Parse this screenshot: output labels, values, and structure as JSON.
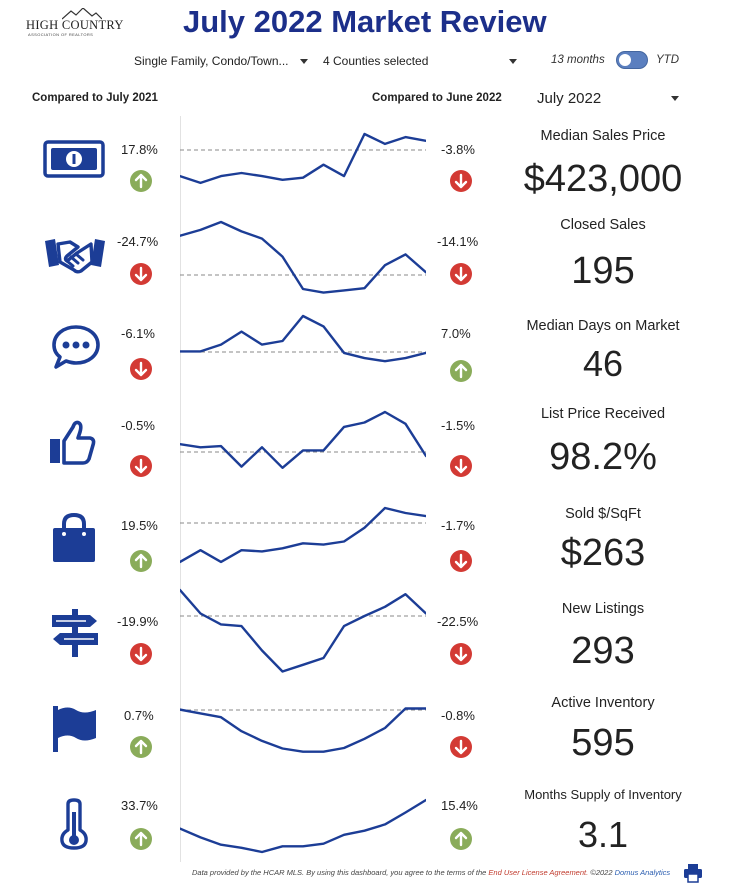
{
  "header": {
    "logo_text": "HIGH COUNTRY",
    "logo_sub": "ASSOCIATION OF REALTORS",
    "title": "July 2022 Market Review"
  },
  "filters": {
    "property_type": "Single Family, Condo/Town...",
    "counties": "4 Counties selected",
    "toggle_left": "13 months",
    "toggle_right": "YTD"
  },
  "columns": {
    "left_compare": "Compared to July 2021",
    "right_compare": "Compared to June 2022",
    "month": "July 2022"
  },
  "colors": {
    "accent": "#1c2f8a",
    "line": "#1c3d96",
    "up": "#8aac5a",
    "down": "#d33a34"
  },
  "metrics": [
    {
      "label": "Median Sales Price",
      "value": "$423,000",
      "icon": "money-icon",
      "yoy": "17.8%",
      "yoy_dir": "up",
      "mom": "-3.8%",
      "mom_dir": "down"
    },
    {
      "label": "Closed Sales",
      "value": "195",
      "icon": "handshake-icon",
      "yoy": "-24.7%",
      "yoy_dir": "down",
      "mom": "-14.1%",
      "mom_dir": "down"
    },
    {
      "label": "Median Days on Market",
      "value": "46",
      "icon": "chat-bubble-icon",
      "yoy": "-6.1%",
      "yoy_dir": "down",
      "mom": "7.0%",
      "mom_dir": "up"
    },
    {
      "label": "List Price Received",
      "value": "98.2%",
      "icon": "thumbs-up-icon",
      "yoy": "-0.5%",
      "yoy_dir": "down",
      "mom": "-1.5%",
      "mom_dir": "down"
    },
    {
      "label": "Sold $/SqFt",
      "value": "$263",
      "icon": "shopping-bag-icon",
      "yoy": "19.5%",
      "yoy_dir": "up",
      "mom": "-1.7%",
      "mom_dir": "down"
    },
    {
      "label": "New Listings",
      "value": "293",
      "icon": "signpost-icon",
      "yoy": "-19.9%",
      "yoy_dir": "down",
      "mom": "-22.5%",
      "mom_dir": "down"
    },
    {
      "label": "Active Inventory",
      "value": "595",
      "icon": "flag-icon",
      "yoy": "0.7%",
      "yoy_dir": "up",
      "mom": "-0.8%",
      "mom_dir": "down"
    },
    {
      "label": "Months Supply of Inventory",
      "value": "3.1",
      "icon": "thermometer-icon",
      "yoy": "33.7%",
      "yoy_dir": "up",
      "mom": "15.4%",
      "mom_dir": "up"
    }
  ],
  "sparklines": [
    [
      0.81,
      0.94,
      0.81,
      0.75,
      0.81,
      0.88,
      0.84,
      0.59,
      0.81,
      0.0,
      0.19,
      0.06,
      0.13
    ],
    [
      0.19,
      0.11,
      0.0,
      0.13,
      0.23,
      0.48,
      0.93,
      0.98,
      0.95,
      0.92,
      0.6,
      0.45,
      0.7
    ],
    [
      0.68,
      0.68,
      0.55,
      0.3,
      0.55,
      0.48,
      0.0,
      0.2,
      0.71,
      0.81,
      0.87,
      0.81,
      0.71
    ],
    [
      0.52,
      0.57,
      0.55,
      0.88,
      0.57,
      0.9,
      0.62,
      0.62,
      0.24,
      0.17,
      0.0,
      0.19,
      0.71
    ],
    [
      0.87,
      0.68,
      0.87,
      0.68,
      0.7,
      0.65,
      0.57,
      0.59,
      0.54,
      0.32,
      0.0,
      0.08,
      0.13
    ],
    [
      0.0,
      0.28,
      0.41,
      0.43,
      0.72,
      0.97,
      0.89,
      0.81,
      0.43,
      0.31,
      0.2,
      0.05,
      0.28
    ],
    [
      0.03,
      0.1,
      0.17,
      0.43,
      0.61,
      0.75,
      0.81,
      0.81,
      0.74,
      0.57,
      0.37,
      0.01,
      0.01
    ],
    [
      0.55,
      0.72,
      0.86,
      0.92,
      1.0,
      0.89,
      0.89,
      0.84,
      0.67,
      0.59,
      0.47,
      0.24,
      0.0
    ]
  ],
  "footer": {
    "text": "Data provided by the HCAR MLS.  By using this dashboard, you agree to the terms of the ",
    "link": "End User License Agreement.",
    "copy": "  ©2022 ",
    "brand": "Domus Analytics"
  }
}
